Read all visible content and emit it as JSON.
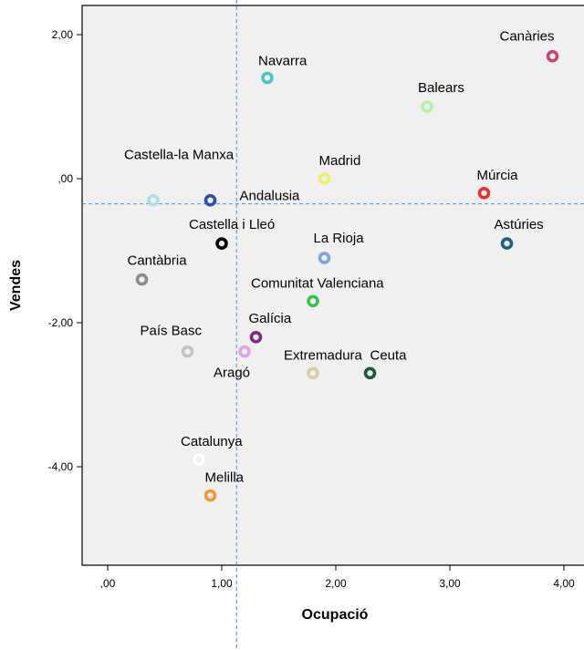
{
  "chart_data": {
    "type": "scatter",
    "xlabel": "Ocupació",
    "ylabel": "Vendes",
    "xlim": [
      -0.25,
      4.1
    ],
    "ylim": [
      -5.3,
      2.4
    ],
    "xticks": [
      0,
      1,
      2,
      3,
      4
    ],
    "xtick_labels": [
      ",00",
      "1,00",
      "2,00",
      "3,00",
      "4,00"
    ],
    "yticks": [
      2,
      0,
      -2,
      -4
    ],
    "ytick_labels": [
      "2,00",
      ",00",
      "-2,00",
      "-4,00"
    ],
    "reference_lines": {
      "x": 1.13,
      "y": -0.35
    },
    "grid": false,
    "plot_background": "#f0f0f0",
    "reference_line_color": "#4a90d9",
    "points": [
      {
        "label": "Canàries",
        "x": 3.9,
        "y": 1.7,
        "color": "#c2457e"
      },
      {
        "label": "Navarra",
        "x": 1.4,
        "y": 1.4,
        "color": "#4cc3c8"
      },
      {
        "label": "Balears",
        "x": 2.8,
        "y": 1.0,
        "color": "#b4f2a8"
      },
      {
        "label": "Madrid",
        "x": 1.9,
        "y": 0.0,
        "color": "#f0f066"
      },
      {
        "label": "Múrcia",
        "x": 3.3,
        "y": -0.2,
        "color": "#e8302f"
      },
      {
        "label": "Castella-la Manxa",
        "x": 0.4,
        "y": -0.3,
        "color": "#a8e0ea"
      },
      {
        "label": "Andalusia",
        "x": 0.9,
        "y": -0.3,
        "color": "#2f4ea8"
      },
      {
        "label": "Castella i Lleó",
        "x": 1.0,
        "y": -0.9,
        "color": "#000000"
      },
      {
        "label": "Astúries",
        "x": 3.5,
        "y": -0.9,
        "color": "#1f5f79"
      },
      {
        "label": "La Rioja",
        "x": 1.9,
        "y": -1.1,
        "color": "#7ba6d6"
      },
      {
        "label": "Cantàbria",
        "x": 0.3,
        "y": -1.4,
        "color": "#8c8c8c"
      },
      {
        "label": "Comunitat Valenciana",
        "x": 1.8,
        "y": -1.7,
        "color": "#3cc04c"
      },
      {
        "label": "Galícia",
        "x": 1.3,
        "y": -2.2,
        "color": "#7c2a7e"
      },
      {
        "label": "País Basc",
        "x": 0.7,
        "y": -2.4,
        "color": "#c4c4c4"
      },
      {
        "label": "Aragó",
        "x": 1.2,
        "y": -2.4,
        "color": "#d9a6ee"
      },
      {
        "label": "Extremadura",
        "x": 1.8,
        "y": -2.7,
        "color": "#d6d0a0"
      },
      {
        "label": "Ceuta",
        "x": 2.3,
        "y": -2.7,
        "color": "#1a5a3a"
      },
      {
        "label": "Catalunya",
        "x": 0.8,
        "y": -3.9,
        "color": "#ffffff"
      },
      {
        "label": "Melilla",
        "x": 0.9,
        "y": -4.4,
        "color": "#f5962a"
      }
    ]
  }
}
